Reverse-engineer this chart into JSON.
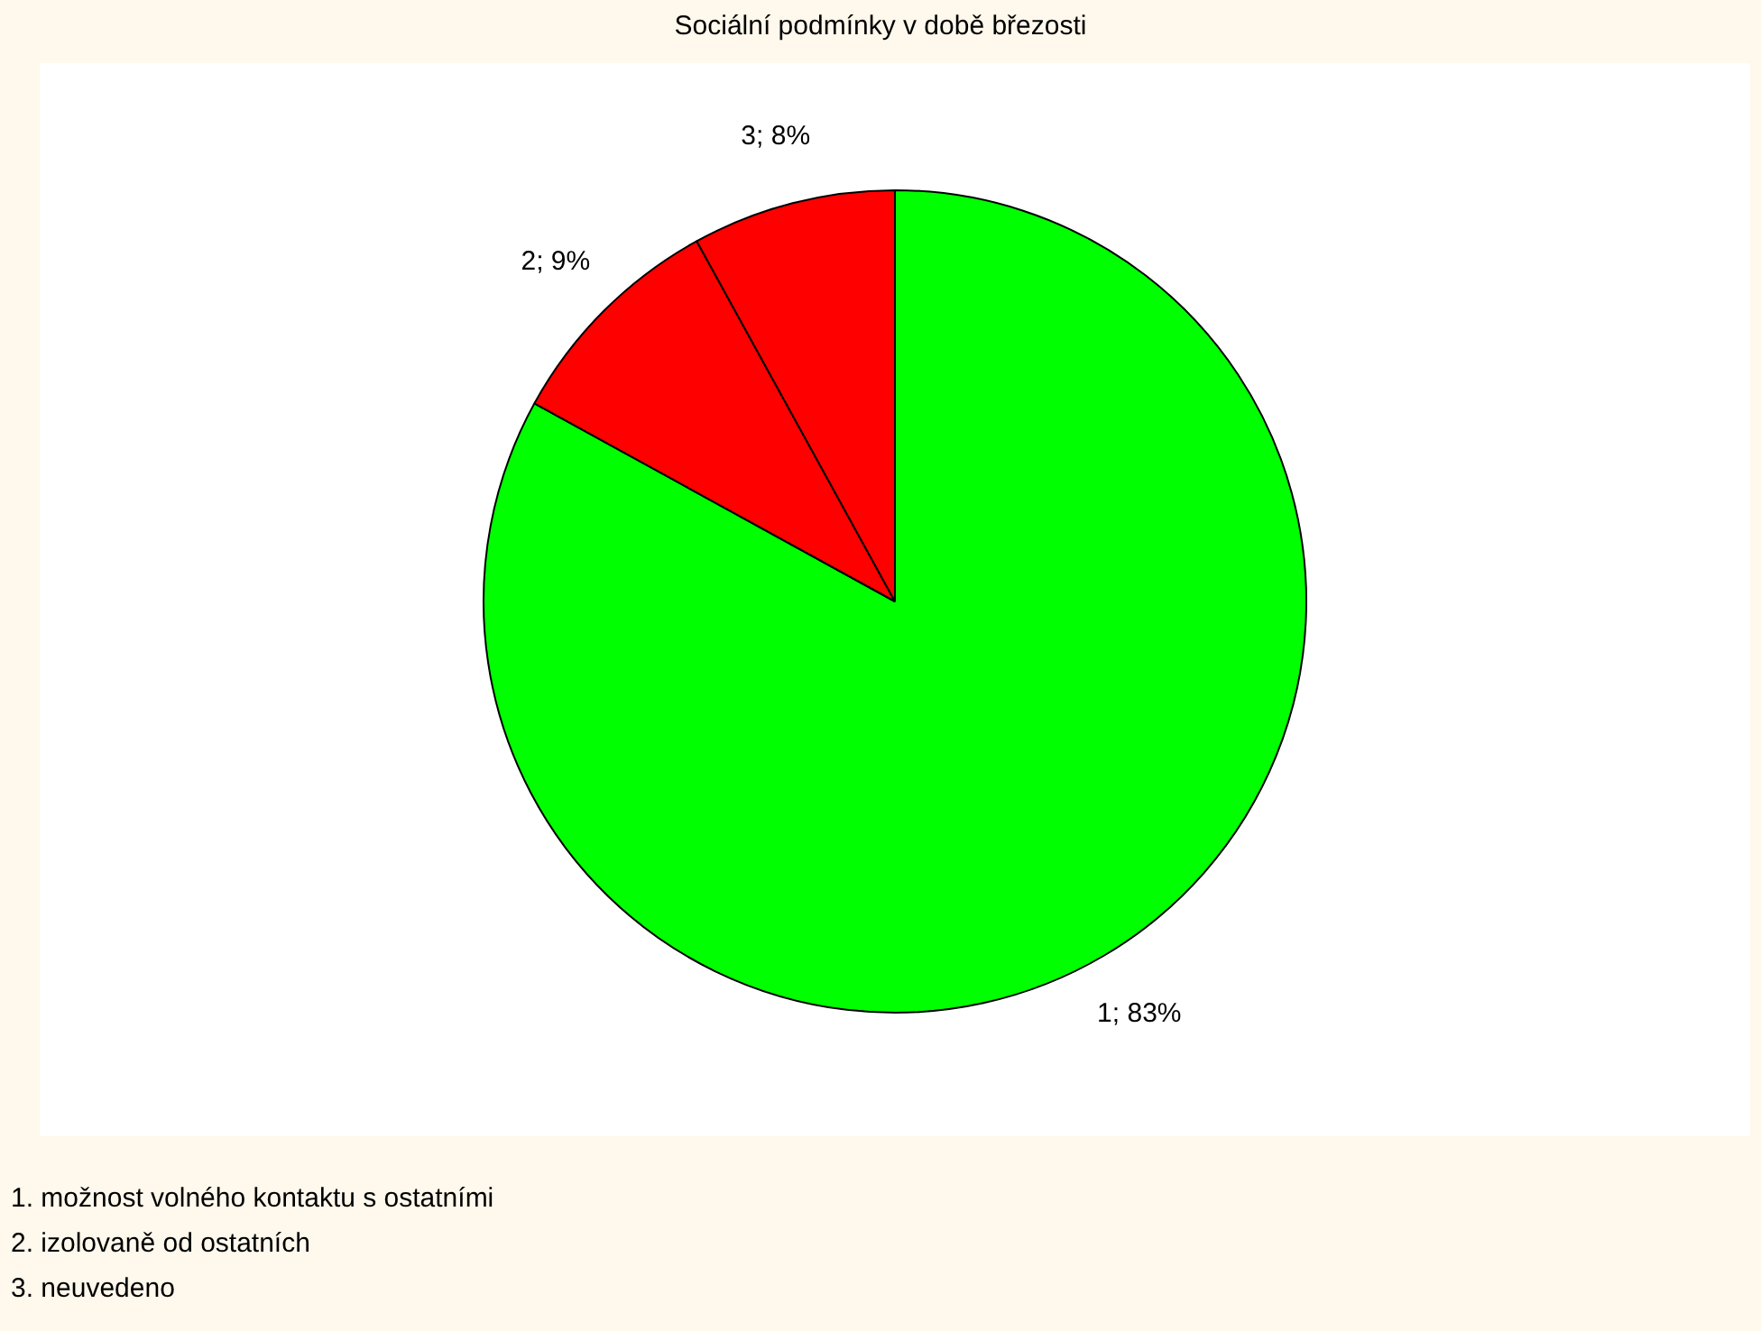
{
  "chart_data": {
    "type": "pie",
    "title": "Sociální podmínky v době březosti",
    "categories": [
      null,
      null,
      null
    ],
    "values": [
      83,
      9,
      8
    ],
    "colors": [
      "#00ff00",
      "#ff0000",
      "#ff0000"
    ],
    "value_labels": [
      "1; 83%",
      "2; 9%",
      "3; 8%"
    ],
    "legend": false,
    "annotations": [
      "1. možnost volného kontaktu s ostatními",
      "2. izolovaně od ostatních",
      "3. neuvedeno"
    ]
  }
}
